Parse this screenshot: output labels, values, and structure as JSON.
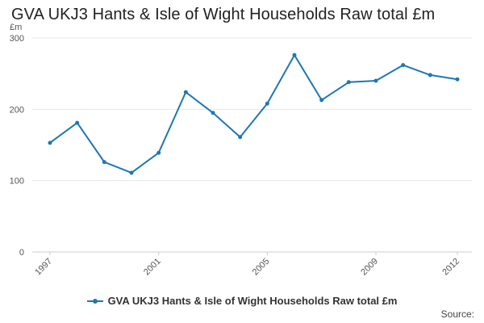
{
  "chart_data": {
    "type": "line",
    "title": "GVA UKJ3 Hants & Isle of Wight Households Raw total £m",
    "ylabel": "£m",
    "xlabel": "",
    "x": [
      1997,
      1998,
      1999,
      2000,
      2001,
      2002,
      2003,
      2004,
      2005,
      2006,
      2007,
      2008,
      2009,
      2010,
      2011,
      2012
    ],
    "x_ticks": [
      "1997",
      "2001",
      "2005",
      "2009",
      "2012"
    ],
    "y_ticks": [
      "0",
      "100",
      "200",
      "300"
    ],
    "ylim": [
      0,
      300
    ],
    "grid": true,
    "legend_position": "bottom",
    "series": [
      {
        "name": "GVA UKJ3 Hants & Isle of Wight Households Raw total £m",
        "color": "#1f77b4",
        "values": [
          153,
          181,
          126,
          111,
          139,
          224,
          195,
          161,
          208,
          276,
          213,
          238,
          240,
          262,
          248,
          242
        ]
      }
    ]
  },
  "footer": {
    "source_label": "Source:"
  }
}
